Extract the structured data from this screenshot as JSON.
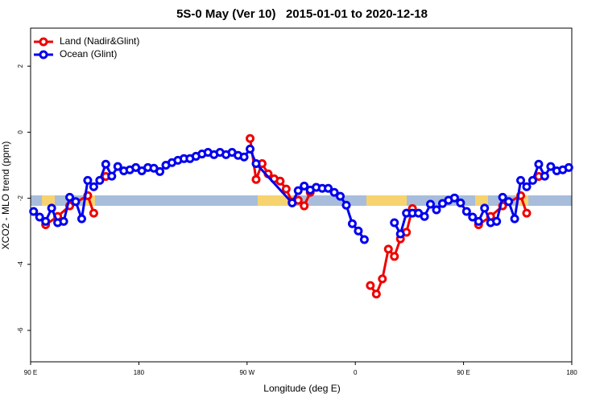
{
  "chart_data": {
    "type": "line",
    "title": "5S-0 May (Ver 10)   2015-01-01 to 2020-12-18",
    "xlabel": "Longitude (deg E)",
    "ylabel": "XCO2 - MLO trend (ppm)",
    "xlim": [
      90,
      540
    ],
    "xticks": [
      {
        "value": 90,
        "label": "90 E"
      },
      180,
      {
        "value": 270,
        "label": "90 W"
      },
      {
        "value": 360,
        "label": "0"
      },
      {
        "value": 450,
        "label": "90 E"
      },
      {
        "value": 540,
        "label": "180"
      }
    ],
    "ylim": [
      -6.95,
      3.15
    ],
    "yticks": [
      -6,
      -4,
      -2,
      0,
      2
    ],
    "legend": "upper left",
    "series": [
      {
        "name": "Land (Nadir&Glint)",
        "color": "#ee0000",
        "x": [
          102.5,
          112.5,
          122.5,
          137.5,
          142.5,
          147.5,
          152.5,
          157.5,
          272.5,
          277.5,
          282.5,
          287.5,
          292.5,
          297.5,
          302.5,
          307.5,
          312.5,
          317.5,
          322.5,
          327.5,
          372.5,
          377.5,
          382.5,
          387.5,
          392.5,
          397.5,
          402.5,
          407.5,
          412.5,
          462.5,
          472.5,
          482.5,
          497.5,
          502.5,
          507.5,
          512.5
        ],
        "values": [
          -2.8,
          -2.55,
          -2.23,
          -1.92,
          -2.45,
          null,
          -1.34,
          null,
          -0.19,
          -1.43,
          -0.95,
          -1.26,
          -1.41,
          -1.48,
          -1.72,
          -2.11,
          -2.06,
          -2.23,
          -1.82,
          null,
          -4.64,
          -4.9,
          -4.44,
          -3.54,
          -3.76,
          -3.23,
          -3.03,
          -2.31,
          null,
          -2.8,
          -2.55,
          -2.23,
          -1.92,
          -2.45,
          null,
          -1.34
        ]
      },
      {
        "name": "Ocean (Glint)",
        "color": "#0000ee",
        "x": [
          92.5,
          97.5,
          102.5,
          107.5,
          112.5,
          117.5,
          122.5,
          127.5,
          132.5,
          137.5,
          142.5,
          147.5,
          152.5,
          157.5,
          162.5,
          167.5,
          172.5,
          177.5,
          182.5,
          187.5,
          192.5,
          197.5,
          202.5,
          207.5,
          212.5,
          217.5,
          222.5,
          227.5,
          232.5,
          237.5,
          242.5,
          247.5,
          252.5,
          257.5,
          262.5,
          267.5,
          272.5,
          277.5,
          307.5,
          312.5,
          317.5,
          322.5,
          327.5,
          332.5,
          337.5,
          342.5,
          347.5,
          352.5,
          357.5,
          362.5,
          367.5,
          372.5,
          392.5,
          397.5,
          402.5,
          407.5,
          412.5,
          417.5,
          422.5,
          427.5,
          432.5,
          437.5,
          442.5,
          447.5,
          452.5,
          457.5,
          462.5,
          467.5,
          472.5,
          477.5,
          482.5,
          487.5,
          492.5,
          497.5,
          502.5,
          507.5,
          512.5,
          517.5,
          522.5,
          527.5,
          532.5,
          537.5
        ],
        "values": [
          -2.4,
          -2.57,
          -2.7,
          -2.3,
          -2.74,
          -2.7,
          -1.97,
          -2.1,
          -2.62,
          -1.46,
          -1.65,
          -1.46,
          -0.97,
          -1.33,
          -1.04,
          -1.17,
          -1.14,
          -1.07,
          -1.17,
          -1.07,
          -1.09,
          -1.19,
          -1.0,
          -0.92,
          -0.85,
          -0.8,
          -0.8,
          -0.73,
          -0.66,
          -0.61,
          -0.68,
          -0.61,
          -0.68,
          -0.61,
          -0.7,
          -0.75,
          -0.51,
          -0.95,
          -2.14,
          -1.77,
          -1.63,
          -1.75,
          -1.67,
          -1.7,
          -1.7,
          -1.82,
          -1.94,
          -2.21,
          -2.77,
          -2.99,
          -3.25,
          null,
          -2.74,
          -3.08,
          -2.45,
          -2.45,
          -2.45,
          -2.55,
          -2.18,
          -2.35,
          -2.16,
          -2.06,
          -1.99,
          -2.14,
          -2.4,
          -2.57,
          -2.7,
          -2.3,
          -2.74,
          -2.7,
          -1.97,
          -2.1,
          -2.62,
          -1.46,
          -1.65,
          -1.46,
          -0.97,
          -1.33,
          -1.04,
          -1.17,
          -1.14,
          -1.07
        ]
      }
    ]
  }
}
